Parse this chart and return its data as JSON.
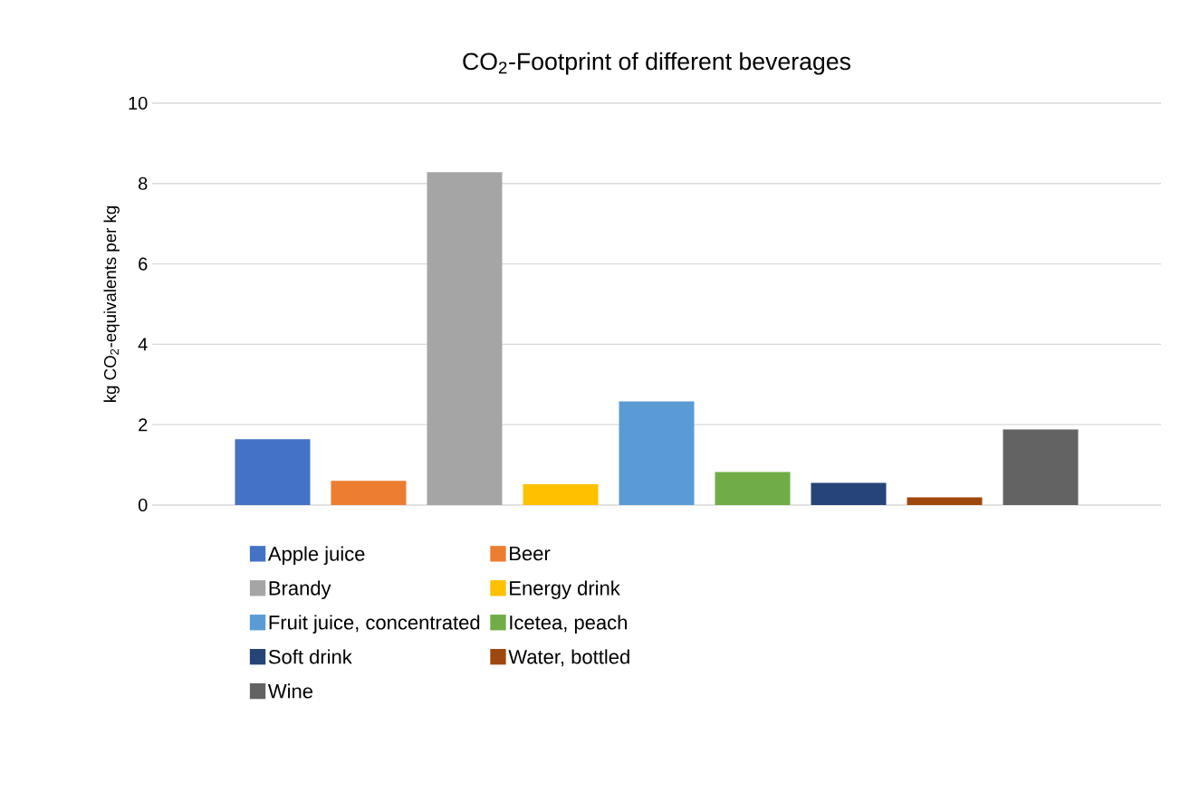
{
  "chart_data": {
    "type": "bar",
    "title": "CO$_{2}$-Footprint of different beverages",
    "ylabel": "kg CO$_{2}$-equivalents per kg",
    "categories": [
      null
    ],
    "series": [
      {
        "name": "Apple juice",
        "color": "#4472c4",
        "values": [
          1.64
        ]
      },
      {
        "name": "Beer",
        "color": "#ed7d31",
        "values": [
          0.6
        ]
      },
      {
        "name": "Brandy",
        "color": "#a5a5a5",
        "values": [
          8.28
        ]
      },
      {
        "name": "Energy drink",
        "color": "#ffc000",
        "values": [
          0.52
        ]
      },
      {
        "name": "Fruit juice, concentrated",
        "color": "#5b9bd5",
        "values": [
          2.58
        ]
      },
      {
        "name": "Icetea, peach",
        "color": "#70ad47",
        "values": [
          0.82
        ]
      },
      {
        "name": "Soft drink",
        "color": "#264478",
        "values": [
          0.55
        ]
      },
      {
        "name": "Water, bottled",
        "color": "#9e480e",
        "values": [
          0.19
        ]
      },
      {
        "name": "Wine",
        "color": "#636363",
        "values": [
          1.88
        ]
      }
    ],
    "ylim": [
      0,
      10
    ],
    "yticks": [
      0,
      2,
      4,
      6,
      8,
      10
    ],
    "grid": "y",
    "legend": "bottom"
  }
}
